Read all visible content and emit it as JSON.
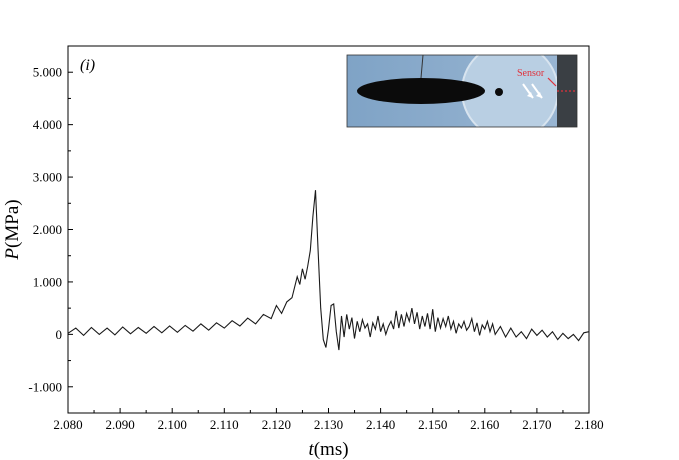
{
  "chart_data": {
    "type": "line",
    "panel_label": "(i)",
    "xlabel": {
      "var": "t",
      "unit": "(ms)"
    },
    "ylabel": {
      "var": "P",
      "unit": "(MPa)"
    },
    "xlim": [
      2.08,
      2.18
    ],
    "ylim": [
      -1.5,
      5.5
    ],
    "xticks": [
      2.08,
      2.09,
      2.1,
      2.11,
      2.12,
      2.13,
      2.14,
      2.15,
      2.16,
      2.17,
      2.18
    ],
    "xtick_labels": [
      "2.080",
      "2.090",
      "2.100",
      "2.110",
      "2.120",
      "2.130",
      "2.140",
      "2.150",
      "2.160",
      "2.170",
      "2.180"
    ],
    "yticks": [
      -1,
      0,
      1,
      2,
      3,
      4,
      5
    ],
    "ytick_labels": [
      "-1.000",
      "0",
      "1.000",
      "2.000",
      "3.000",
      "4.000",
      "5.000"
    ],
    "grid": false,
    "inset": {
      "sensor_label": "Sensor",
      "colors": {
        "background": "#7fa3c6",
        "ellipse": "#0b0b0b",
        "sensor_line": "#e0303a"
      }
    },
    "series": [
      {
        "color": "#1a1a1a",
        "x": [
          2.08,
          2.0815,
          2.083,
          2.0845,
          2.086,
          2.0875,
          2.089,
          2.0905,
          2.092,
          2.0935,
          2.095,
          2.0965,
          2.098,
          2.0995,
          2.101,
          2.1025,
          2.104,
          2.1055,
          2.107,
          2.1085,
          2.11,
          2.1115,
          2.113,
          2.1145,
          2.116,
          2.1175,
          2.119,
          2.12,
          2.121,
          2.122,
          2.123,
          2.124,
          2.1245,
          2.125,
          2.1255,
          2.126,
          2.1265,
          2.127,
          2.1275,
          2.128,
          2.1285,
          2.129,
          2.1295,
          2.13,
          2.1305,
          2.131,
          2.1315,
          2.132,
          2.1325,
          2.133,
          2.1335,
          2.134,
          2.1345,
          2.135,
          2.1355,
          2.136,
          2.1365,
          2.137,
          2.1375,
          2.138,
          2.1385,
          2.139,
          2.1395,
          2.14,
          2.1405,
          2.141,
          2.1415,
          2.142,
          2.1425,
          2.143,
          2.1435,
          2.144,
          2.1445,
          2.145,
          2.1455,
          2.146,
          2.1465,
          2.147,
          2.1475,
          2.148,
          2.1485,
          2.149,
          2.1495,
          2.15,
          2.1505,
          2.151,
          2.1515,
          2.152,
          2.1525,
          2.153,
          2.1535,
          2.154,
          2.1545,
          2.155,
          2.1555,
          2.156,
          2.1565,
          2.157,
          2.1575,
          2.158,
          2.1585,
          2.159,
          2.1595,
          2.16,
          2.1605,
          2.161,
          2.1615,
          2.162,
          2.163,
          2.164,
          2.165,
          2.166,
          2.167,
          2.168,
          2.169,
          2.17,
          2.171,
          2.172,
          2.173,
          2.174,
          2.175,
          2.176,
          2.177,
          2.178,
          2.179,
          2.18
        ],
        "y": [
          0.02,
          0.12,
          -0.02,
          0.13,
          0.0,
          0.12,
          -0.01,
          0.14,
          0.01,
          0.13,
          0.02,
          0.15,
          0.03,
          0.16,
          0.04,
          0.17,
          0.06,
          0.2,
          0.08,
          0.22,
          0.12,
          0.26,
          0.16,
          0.31,
          0.2,
          0.38,
          0.3,
          0.55,
          0.4,
          0.62,
          0.7,
          1.1,
          0.95,
          1.25,
          1.05,
          1.3,
          1.6,
          2.25,
          2.75,
          1.6,
          0.5,
          -0.1,
          -0.25,
          0.1,
          0.55,
          0.58,
          0.05,
          -0.3,
          0.35,
          -0.05,
          0.38,
          0.1,
          0.32,
          -0.08,
          0.25,
          0.05,
          0.28,
          0.12,
          0.2,
          -0.05,
          0.22,
          0.1,
          0.35,
          0.05,
          0.2,
          0.0,
          0.15,
          0.25,
          0.1,
          0.45,
          0.12,
          0.38,
          0.15,
          0.4,
          0.25,
          0.5,
          0.2,
          0.42,
          0.1,
          0.35,
          0.15,
          0.4,
          0.1,
          0.48,
          0.05,
          0.32,
          0.12,
          0.3,
          0.15,
          0.35,
          0.1,
          0.25,
          0.02,
          0.2,
          0.12,
          0.25,
          0.08,
          0.15,
          0.3,
          0.05,
          0.22,
          -0.02,
          0.18,
          0.1,
          0.25,
          0.05,
          0.2,
          0.0,
          0.15,
          -0.05,
          0.12,
          -0.05,
          0.05,
          -0.08,
          0.1,
          -0.02,
          0.08,
          -0.05,
          0.05,
          -0.1,
          0.02,
          -0.08,
          0.0,
          -0.12,
          0.03,
          0.05
        ]
      }
    ]
  }
}
